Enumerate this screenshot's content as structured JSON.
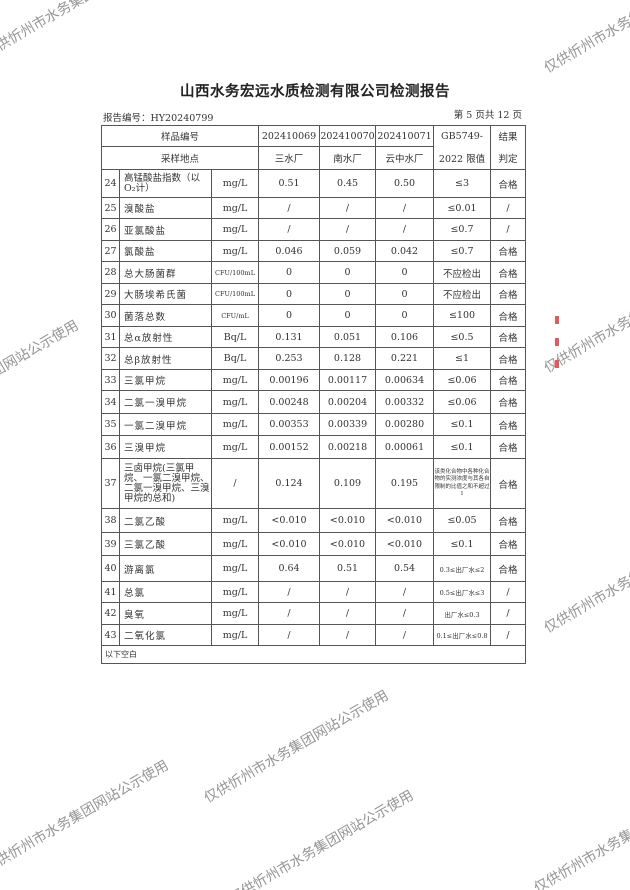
{
  "title": "山西水务宏远水质检测有限公司检测报告",
  "report_no": "报告编号：HY20240799",
  "page_info": "第 5 页共 12 页",
  "header": {
    "sample_no_label": "样品编号",
    "site_label": "采样地点",
    "samples": [
      "202410069",
      "202410070",
      "202410071"
    ],
    "sites": [
      "三水厂",
      "南水厂",
      "云中水厂"
    ],
    "limit_label_1": "GB5749-",
    "limit_label_2": "2022 限值",
    "result_label_1": "结果",
    "result_label_2": "判定"
  },
  "rows": [
    {
      "no": "24",
      "name": "高锰酸盐指数（以O₂计）",
      "unit": "mg/L",
      "v": [
        "0.51",
        "0.45",
        "0.50"
      ],
      "limit": "≤3",
      "result": "合格"
    },
    {
      "no": "25",
      "name": "溴酸盐",
      "unit": "mg/L",
      "v": [
        "/",
        "/",
        "/"
      ],
      "limit": "≤0.01",
      "result": "/"
    },
    {
      "no": "26",
      "name": "亚氯酸盐",
      "unit": "mg/L",
      "v": [
        "/",
        "/",
        "/"
      ],
      "limit": "≤0.7",
      "result": "/"
    },
    {
      "no": "27",
      "name": "氯酸盐",
      "unit": "mg/L",
      "v": [
        "0.046",
        "0.059",
        "0.042"
      ],
      "limit": "≤0.7",
      "result": "合格"
    },
    {
      "no": "28",
      "name": "总大肠菌群",
      "unit": "CFU/100mL",
      "v": [
        "0",
        "0",
        "0"
      ],
      "limit": "不应检出",
      "result": "合格"
    },
    {
      "no": "29",
      "name": "大肠埃希氏菌",
      "unit": "CFU/100mL",
      "v": [
        "0",
        "0",
        "0"
      ],
      "limit": "不应检出",
      "result": "合格"
    },
    {
      "no": "30",
      "name": "菌落总数",
      "unit": "CFU/mL",
      "v": [
        "0",
        "0",
        "0"
      ],
      "limit": "≤100",
      "result": "合格"
    },
    {
      "no": "31",
      "name": "总α放射性",
      "unit": "Bq/L",
      "v": [
        "0.131",
        "0.051",
        "0.106"
      ],
      "limit": "≤0.5",
      "result": "合格"
    },
    {
      "no": "32",
      "name": "总β放射性",
      "unit": "Bq/L",
      "v": [
        "0.253",
        "0.128",
        "0.221"
      ],
      "limit": "≤1",
      "result": "合格"
    },
    {
      "no": "33",
      "name": "三氯甲烷",
      "unit": "mg/L",
      "v": [
        "0.00196",
        "0.00117",
        "0.00634"
      ],
      "limit": "≤0.06",
      "result": "合格"
    },
    {
      "no": "34",
      "name": "二氯一溴甲烷",
      "unit": "mg/L",
      "v": [
        "0.00248",
        "0.00204",
        "0.00332"
      ],
      "limit": "≤0.06",
      "result": "合格"
    },
    {
      "no": "35",
      "name": "一氯二溴甲烷",
      "unit": "mg/L",
      "v": [
        "0.00353",
        "0.00339",
        "0.00280"
      ],
      "limit": "≤0.1",
      "result": "合格"
    },
    {
      "no": "36",
      "name": "三溴甲烷",
      "unit": "mg/L",
      "v": [
        "0.00152",
        "0.00218",
        "0.00061"
      ],
      "limit": "≤0.1",
      "result": "合格"
    },
    {
      "no": "37",
      "name": "三卤甲烷(三氯甲烷、一氯二溴甲烷、二氯一溴甲烷、三溴甲烷的总和)",
      "unit": "/",
      "v": [
        "0.124",
        "0.109",
        "0.195"
      ],
      "limit": "该类化合物中各种化合物的实测浓度与其各自限制的比值之和不超过1",
      "result": "合格"
    },
    {
      "no": "38",
      "name": "二氯乙酸",
      "unit": "mg/L",
      "v": [
        "<0.010",
        "<0.010",
        "<0.010"
      ],
      "limit": "≤0.05",
      "result": "合格"
    },
    {
      "no": "39",
      "name": "三氯乙酸",
      "unit": "mg/L",
      "v": [
        "<0.010",
        "<0.010",
        "<0.010"
      ],
      "limit": "≤0.1",
      "result": "合格"
    },
    {
      "no": "40",
      "name": "游离氯",
      "unit": "mg/L",
      "v": [
        "0.64",
        "0.51",
        "0.54"
      ],
      "limit": "0.3≤出厂水≤2",
      "result": "合格"
    },
    {
      "no": "41",
      "name": "总氯",
      "unit": "mg/L",
      "v": [
        "/",
        "/",
        "/"
      ],
      "limit": "0.5≤出厂水≤3",
      "result": "/"
    },
    {
      "no": "42",
      "name": "臭氧",
      "unit": "mg/L",
      "v": [
        "/",
        "/",
        "/"
      ],
      "limit": "出厂水≤0.3",
      "result": "/"
    },
    {
      "no": "43",
      "name": "二氧化氯",
      "unit": "mg/L",
      "v": [
        "/",
        "/",
        "/"
      ],
      "limit": "0.1≤出厂水≤0.8",
      "result": "/"
    }
  ],
  "footer": "以下空白",
  "watermark": "仅供忻州市水务集团网站公示使用",
  "stamp_color": "#e35a5a"
}
